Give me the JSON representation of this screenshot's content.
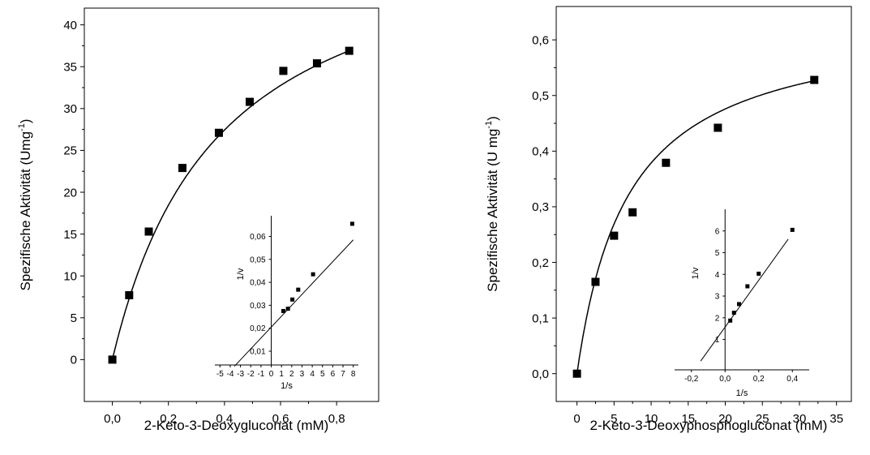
{
  "chart_data": [
    {
      "type": "scatter",
      "id": "left",
      "xlabel": "2-Keto-3-Deoxygluconat (mM)",
      "ylabel": "Spezifische Aktivität (Umg",
      "ylabel_sup": "-1",
      "ylabel_close": ")",
      "xlim": [
        -0.1,
        0.95
      ],
      "ylim": [
        -5,
        42
      ],
      "xticks": [
        0.0,
        0.2,
        0.4,
        0.6,
        0.8
      ],
      "xtick_labels": [
        "0,0",
        "0,2",
        "0,4",
        "0,6",
        "0,8"
      ],
      "yticks": [
        0,
        5,
        10,
        15,
        20,
        25,
        30,
        35,
        40
      ],
      "ytick_labels": [
        "0",
        "5",
        "10",
        "15",
        "20",
        "25",
        "30",
        "35",
        "40"
      ],
      "points": {
        "x": [
          0.0,
          0.06,
          0.13,
          0.25,
          0.38,
          0.49,
          0.61,
          0.73,
          0.845
        ],
        "y": [
          0.0,
          7.7,
          15.3,
          22.9,
          27.1,
          30.8,
          34.5,
          35.4,
          36.9
        ]
      },
      "fit": {
        "model": "michaelis-menten",
        "vmax": 53.5,
        "km": 0.38
      },
      "inset": {
        "type": "scatter",
        "xlabel": "1/s",
        "ylabel": "1/v",
        "xlim": [
          -5.5,
          8.5
        ],
        "ylim": [
          0.004,
          0.069
        ],
        "xticks": [
          -5,
          -4,
          -3,
          -2,
          -1,
          0,
          1,
          2,
          3,
          4,
          5,
          6,
          7,
          8
        ],
        "xtick_labels": [
          "-5",
          "-4",
          "-3",
          "-2",
          "-1",
          "0",
          "1",
          "2",
          "3",
          "4",
          "5",
          "6",
          "7",
          "8"
        ],
        "yticks": [
          0.01,
          0.02,
          0.03,
          0.04,
          0.05,
          0.06
        ],
        "ytick_labels": [
          "0,01",
          "0,02",
          "0,03",
          "0,04",
          "0,05",
          "0,06"
        ],
        "points": {
          "x": [
            1.18,
            1.63,
            2.06,
            2.63,
            4.08,
            7.9
          ],
          "y": [
            0.0275,
            0.0285,
            0.0325,
            0.0368,
            0.0435,
            0.0655
          ]
        },
        "line": {
          "slope": 0.00475,
          "intercept": 0.0205,
          "x_range": [
            -3.6,
            8.0
          ]
        }
      }
    },
    {
      "type": "scatter",
      "id": "right",
      "xlabel": "2-Keto-3-Deoxyphosphogluconat (mM)",
      "ylabel": "Spezifische Aktivität (U mg",
      "ylabel_sup": "-1",
      "ylabel_close": ")",
      "xlim": [
        -2.8,
        37
      ],
      "ylim": [
        -0.05,
        0.66
      ],
      "xticks": [
        0,
        5,
        10,
        15,
        20,
        25,
        30,
        35
      ],
      "xtick_labels": [
        "0",
        "5",
        "10",
        "15",
        "20",
        "25",
        "30",
        "35"
      ],
      "yticks": [
        0.0,
        0.1,
        0.2,
        0.3,
        0.4,
        0.5,
        0.6
      ],
      "ytick_labels": [
        "0,0",
        "0,1",
        "0,2",
        "0,3",
        "0,4",
        "0,5",
        "0,6"
      ],
      "points": {
        "x": [
          0,
          2.5,
          5.0,
          7.5,
          12.0,
          19.0,
          32.0
        ],
        "y": [
          0.0,
          0.165,
          0.248,
          0.29,
          0.379,
          0.442,
          0.528
        ]
      },
      "fit": {
        "model": "michaelis-menten",
        "vmax": 0.64,
        "km": 6.9
      },
      "inset": {
        "type": "scatter",
        "xlabel": "1/s",
        "ylabel": "1/v",
        "xlim": [
          -0.3,
          0.5
        ],
        "ylim": [
          -0.4,
          7.0
        ],
        "xticks": [
          -0.2,
          0.0,
          0.2,
          0.4
        ],
        "xtick_labels": [
          "-0,2",
          "0,0",
          "0,2",
          "0,4"
        ],
        "yticks": [
          1,
          2,
          3,
          4,
          5,
          6
        ],
        "ytick_labels": [
          "1",
          "2",
          "3",
          "4",
          "5",
          "6"
        ],
        "points": {
          "x": [
            0.031,
            0.053,
            0.083,
            0.133,
            0.2,
            0.4
          ],
          "y": [
            1.87,
            2.23,
            2.63,
            3.45,
            4.03,
            6.05
          ]
        },
        "line": {
          "slope": 10.8,
          "intercept": 1.57,
          "x_range": [
            -0.145,
            0.375
          ]
        }
      }
    }
  ]
}
